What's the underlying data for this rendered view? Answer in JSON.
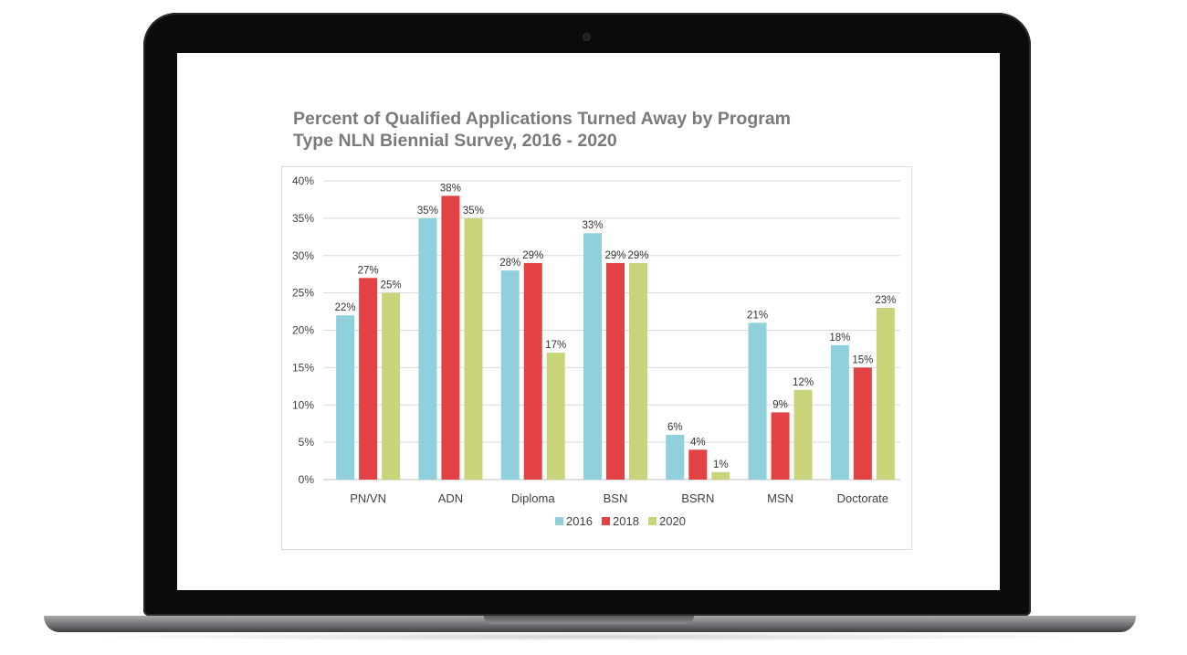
{
  "chart_data": {
    "type": "bar",
    "title_lines": [
      "Percent of Qualified Applications Turned Away by Program",
      "Type NLN Biennial Survey, 2016 - 2020"
    ],
    "categories": [
      "PN/VN",
      "ADN",
      "Diploma",
      "BSN",
      "BSRN",
      "MSN",
      "Doctorate"
    ],
    "series": [
      {
        "name": "2016",
        "color": "#8fd0dc",
        "values": [
          22,
          35,
          28,
          33,
          6,
          21,
          18
        ]
      },
      {
        "name": "2018",
        "color": "#e24243",
        "values": [
          27,
          38,
          29,
          29,
          4,
          9,
          15
        ]
      },
      {
        "name": "2020",
        "color": "#c9d37a",
        "values": [
          25,
          35,
          17,
          29,
          1,
          12,
          23
        ]
      }
    ],
    "data_labels": [
      [
        "22%",
        "35%",
        "28%",
        "33%",
        "6%",
        "21%",
        "18%"
      ],
      [
        "27%",
        "38%",
        "29%",
        "29%",
        "4%",
        "9%",
        "15%"
      ],
      [
        "25%",
        "35%",
        "17%",
        "29%",
        "1%",
        "12%",
        "23%"
      ]
    ],
    "y_tick_labels": [
      "0%",
      "5%",
      "10%",
      "15%",
      "20%",
      "25%",
      "30%",
      "35%",
      "40%"
    ],
    "ylim": [
      0,
      40
    ],
    "ystep": 5,
    "grid": true,
    "legend_position": "bottom"
  }
}
